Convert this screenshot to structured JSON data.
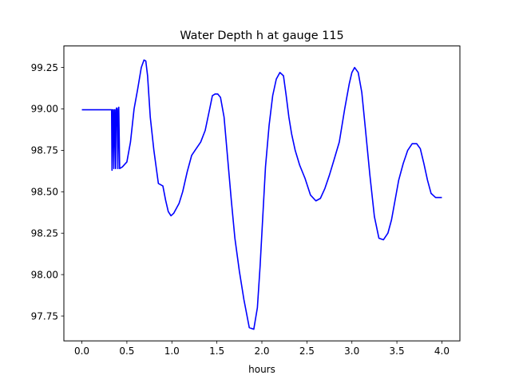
{
  "chart_data": {
    "type": "line",
    "title": "Water Depth h at gauge 115",
    "xlabel": "hours",
    "ylabel": "",
    "xlim": [
      -0.2,
      4.2
    ],
    "ylim": [
      97.6,
      99.38
    ],
    "xticks": [
      0.0,
      0.5,
      1.0,
      1.5,
      2.0,
      2.5,
      3.0,
      3.5,
      4.0
    ],
    "xtick_labels": [
      "0.0",
      "0.5",
      "1.0",
      "1.5",
      "2.0",
      "2.5",
      "3.0",
      "3.5",
      "4.0"
    ],
    "yticks": [
      97.75,
      98.0,
      98.25,
      98.5,
      98.75,
      99.0,
      99.25
    ],
    "ytick_labels": [
      "97.75",
      "98.00",
      "98.25",
      "98.50",
      "98.75",
      "99.00",
      "99.25"
    ],
    "grid": false,
    "series": [
      {
        "color": "#0000ff",
        "x": [
          0.0,
          0.2,
          0.33,
          0.335,
          0.34,
          0.345,
          0.355,
          0.36,
          0.365,
          0.375,
          0.38,
          0.385,
          0.39,
          0.4,
          0.405,
          0.41,
          0.42,
          0.45,
          0.5,
          0.54,
          0.58,
          0.62,
          0.66,
          0.69,
          0.71,
          0.73,
          0.76,
          0.8,
          0.85,
          0.9,
          0.93,
          0.96,
          0.99,
          1.02,
          1.05,
          1.08,
          1.12,
          1.17,
          1.22,
          1.27,
          1.32,
          1.37,
          1.42,
          1.45,
          1.48,
          1.51,
          1.54,
          1.58,
          1.62,
          1.66,
          1.7,
          1.75,
          1.8,
          1.86,
          1.91,
          1.95,
          1.98,
          2.01,
          2.04,
          2.08,
          2.12,
          2.16,
          2.2,
          2.24,
          2.27,
          2.3,
          2.33,
          2.37,
          2.42,
          2.48,
          2.54,
          2.6,
          2.65,
          2.7,
          2.75,
          2.8,
          2.86,
          2.92,
          2.97,
          3.0,
          3.03,
          3.07,
          3.11,
          3.15,
          3.2,
          3.25,
          3.3,
          3.35,
          3.4,
          3.44,
          3.48,
          3.52,
          3.57,
          3.62,
          3.67,
          3.72,
          3.76,
          3.8,
          3.84,
          3.88,
          3.93,
          3.98,
          4.0
        ],
        "y": [
          98.995,
          98.995,
          98.995,
          98.63,
          98.995,
          98.995,
          98.64,
          98.995,
          98.995,
          98.64,
          98.995,
          99.005,
          99.005,
          98.64,
          98.995,
          99.01,
          98.64,
          98.65,
          98.68,
          98.8,
          99.0,
          99.12,
          99.25,
          99.295,
          99.29,
          99.2,
          98.95,
          98.75,
          98.55,
          98.535,
          98.45,
          98.38,
          98.355,
          98.37,
          98.4,
          98.43,
          98.5,
          98.62,
          98.72,
          98.76,
          98.8,
          98.87,
          99.0,
          99.08,
          99.09,
          99.09,
          99.07,
          98.95,
          98.7,
          98.45,
          98.22,
          98.02,
          97.85,
          97.68,
          97.67,
          97.8,
          98.05,
          98.35,
          98.65,
          98.9,
          99.08,
          99.18,
          99.22,
          99.2,
          99.08,
          98.95,
          98.85,
          98.75,
          98.66,
          98.58,
          98.48,
          98.445,
          98.46,
          98.52,
          98.6,
          98.69,
          98.8,
          99.0,
          99.15,
          99.22,
          99.25,
          99.22,
          99.1,
          98.88,
          98.6,
          98.35,
          98.22,
          98.21,
          98.25,
          98.33,
          98.45,
          98.57,
          98.67,
          98.75,
          98.79,
          98.79,
          98.76,
          98.67,
          98.57,
          98.49,
          98.465,
          98.465,
          98.465
        ]
      }
    ]
  }
}
